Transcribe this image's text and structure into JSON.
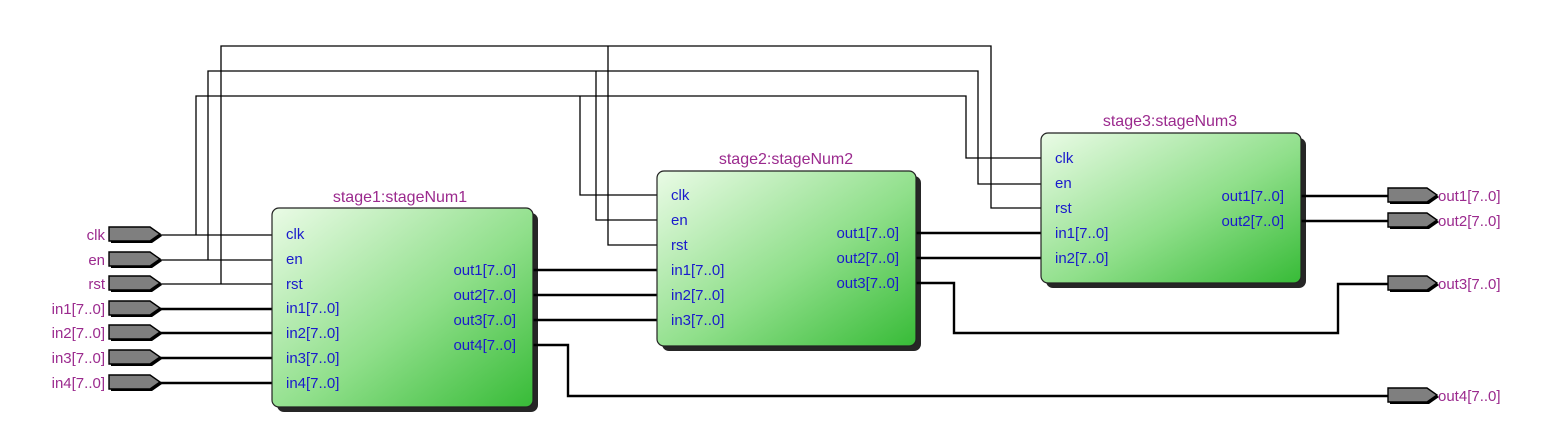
{
  "blocks": {
    "stage1": {
      "title": "stage1:stageNum1",
      "inputs": [
        "clk",
        "en",
        "rst",
        "in1[7..0]",
        "in2[7..0]",
        "in3[7..0]",
        "in4[7..0]"
      ],
      "outputs": [
        "out1[7..0]",
        "out2[7..0]",
        "out3[7..0]",
        "out4[7..0]"
      ]
    },
    "stage2": {
      "title": "stage2:stageNum2",
      "inputs": [
        "clk",
        "en",
        "rst",
        "in1[7..0]",
        "in2[7..0]",
        "in3[7..0]"
      ],
      "outputs": [
        "out1[7..0]",
        "out2[7..0]",
        "out3[7..0]"
      ]
    },
    "stage3": {
      "title": "stage3:stageNum3",
      "inputs": [
        "clk",
        "en",
        "rst",
        "in1[7..0]",
        "in2[7..0]"
      ],
      "outputs": [
        "out1[7..0]",
        "out2[7..0]"
      ]
    }
  },
  "input_ports": [
    "clk",
    "en",
    "rst",
    "in1[7..0]",
    "in2[7..0]",
    "in3[7..0]",
    "in4[7..0]"
  ],
  "output_ports": [
    "out1[7..0]",
    "out2[7..0]",
    "out3[7..0]",
    "out4[7..0]"
  ],
  "colors": {
    "block_fill_light": "#e8fbe4",
    "block_fill_dark": "#3cbe3c",
    "title_text": "#9b2a8e",
    "pin_text": "#1a1acc",
    "port_fill": "#7f7f7f",
    "wire": "#000000"
  }
}
